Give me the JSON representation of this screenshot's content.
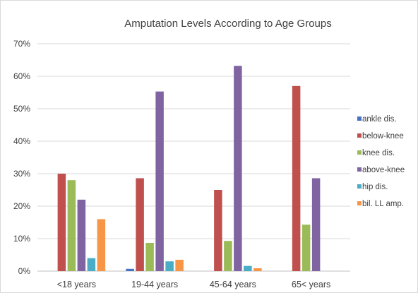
{
  "chart_data": {
    "type": "bar",
    "title": "Amputation Levels According to Age Groups",
    "xlabel": "",
    "ylabel": "",
    "ylim": [
      0,
      0.7
    ],
    "yticks": [
      0,
      0.1,
      0.2,
      0.3,
      0.4,
      0.5,
      0.6,
      0.7
    ],
    "ytick_labels": [
      "0%",
      "10%",
      "20%",
      "30%",
      "40%",
      "50%",
      "60%",
      "70%"
    ],
    "grid": true,
    "legend_position": "right",
    "categories": [
      "<18 years",
      "19-44 years",
      "45-64 years",
      "65< years"
    ],
    "series": [
      {
        "name": "ankle dis.",
        "color": "#4472c4",
        "values": [
          0,
          0.007,
          0,
          0
        ]
      },
      {
        "name": "below-knee",
        "color": "#c0504d",
        "values": [
          0.3,
          0.286,
          0.25,
          0.57
        ]
      },
      {
        "name": "knee dis.",
        "color": "#9bbb59",
        "values": [
          0.28,
          0.087,
          0.093,
          0.143
        ]
      },
      {
        "name": "above-knee",
        "color": "#8064a2",
        "values": [
          0.22,
          0.553,
          0.632,
          0.286
        ]
      },
      {
        "name": "hip dis.",
        "color": "#4bacc6",
        "values": [
          0.04,
          0.03,
          0.016,
          0
        ]
      },
      {
        "name": "bil. LL amp.",
        "color": "#f79646",
        "values": [
          0.16,
          0.035,
          0.009,
          0
        ]
      }
    ]
  }
}
